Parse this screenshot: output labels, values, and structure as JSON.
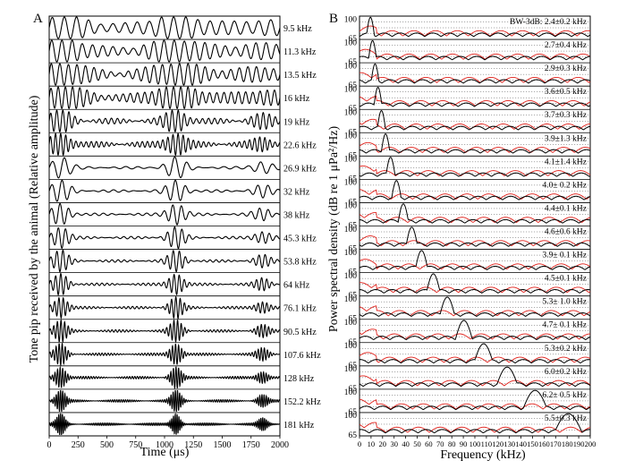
{
  "figure": {
    "panels": [
      "A",
      "B"
    ],
    "colors": {
      "primary": "#000000",
      "secondary": "#e0201a",
      "grid": "#555555"
    }
  },
  "chart_data": [
    {
      "type": "line",
      "panel": "A",
      "xlabel": "Time (μs)",
      "ylabel": "Tone pip received by the animal (Relative amplitude)",
      "xlim": [
        0,
        2000
      ],
      "x_ticks": [
        0,
        250,
        500,
        750,
        1000,
        1250,
        1500,
        1750,
        2000
      ],
      "pip_centers_us": [
        100,
        1100,
        1850
      ],
      "series": [
        {
          "name": "9.5 kHz",
          "frequency_khz": 9.5
        },
        {
          "name": "11.3 kHz",
          "frequency_khz": 11.3
        },
        {
          "name": "13.5 kHz",
          "frequency_khz": 13.5
        },
        {
          "name": "16 kHz",
          "frequency_khz": 16
        },
        {
          "name": "19 kHz",
          "frequency_khz": 19
        },
        {
          "name": "22.6 kHz",
          "frequency_khz": 22.6
        },
        {
          "name": "26.9 kHz",
          "frequency_khz": 26.9
        },
        {
          "name": "32 kHz",
          "frequency_khz": 32
        },
        {
          "name": "38 kHz",
          "frequency_khz": 38
        },
        {
          "name": "45.3 kHz",
          "frequency_khz": 45.3
        },
        {
          "name": "53.8 kHz",
          "frequency_khz": 53.8
        },
        {
          "name": "64 kHz",
          "frequency_khz": 64
        },
        {
          "name": "76.1 kHz",
          "frequency_khz": 76.1
        },
        {
          "name": "90.5 kHz",
          "frequency_khz": 90.5
        },
        {
          "name": "107.6 kHz",
          "frequency_khz": 107.6
        },
        {
          "name": "128 kHz",
          "frequency_khz": 128
        },
        {
          "name": "152.2 kHz",
          "frequency_khz": 152.2
        },
        {
          "name": "181 kHz",
          "frequency_khz": 181
        }
      ]
    },
    {
      "type": "line",
      "panel": "B",
      "xlabel": "Frequency (kHz)",
      "ylabel": "Power spectral density (dB re 1 μPa²/Hz)",
      "xlim": [
        0,
        200
      ],
      "x_ticks": [
        0,
        10,
        20,
        30,
        40,
        50,
        60,
        70,
        80,
        90,
        100,
        110,
        120,
        130,
        140,
        150,
        160,
        170,
        180,
        190,
        200
      ],
      "y_ticks": [
        100,
        65
      ],
      "ylim": [
        65,
        105
      ],
      "grid": true,
      "rows": [
        {
          "peak_khz": 9.5,
          "bandwidth": "BW-3dB: 2.4±0.2 kHz"
        },
        {
          "peak_khz": 11.3,
          "bandwidth": "2.7±0.4 kHz"
        },
        {
          "peak_khz": 13.5,
          "bandwidth": "2.9±0.3 kHz"
        },
        {
          "peak_khz": 16,
          "bandwidth": "3.6±0.5 kHz"
        },
        {
          "peak_khz": 19,
          "bandwidth": "3.7±0.3 kHz"
        },
        {
          "peak_khz": 22.6,
          "bandwidth": "3.9±1.3 kHz"
        },
        {
          "peak_khz": 26.9,
          "bandwidth": "4.1±1.4 kHz"
        },
        {
          "peak_khz": 32,
          "bandwidth": "4.0± 0.2 kHz"
        },
        {
          "peak_khz": 38,
          "bandwidth": "4.4±0.1 kHz"
        },
        {
          "peak_khz": 45.3,
          "bandwidth": "4.6±0.6 kHz"
        },
        {
          "peak_khz": 53.8,
          "bandwidth": "3.9± 0.1 kHz"
        },
        {
          "peak_khz": 64,
          "bandwidth": "4.5±0.1 kHz"
        },
        {
          "peak_khz": 76.1,
          "bandwidth": "5.3± 1.0 kHz"
        },
        {
          "peak_khz": 90.5,
          "bandwidth": "4.7± 0.1 kHz"
        },
        {
          "peak_khz": 107.6,
          "bandwidth": "5.3±0.2 kHz"
        },
        {
          "peak_khz": 128,
          "bandwidth": "6.0±0.2 kHz"
        },
        {
          "peak_khz": 152.2,
          "bandwidth": "6.2± 0.5 kHz"
        },
        {
          "peak_khz": 181,
          "bandwidth": "5.5±0.3 kHz"
        }
      ]
    }
  ]
}
